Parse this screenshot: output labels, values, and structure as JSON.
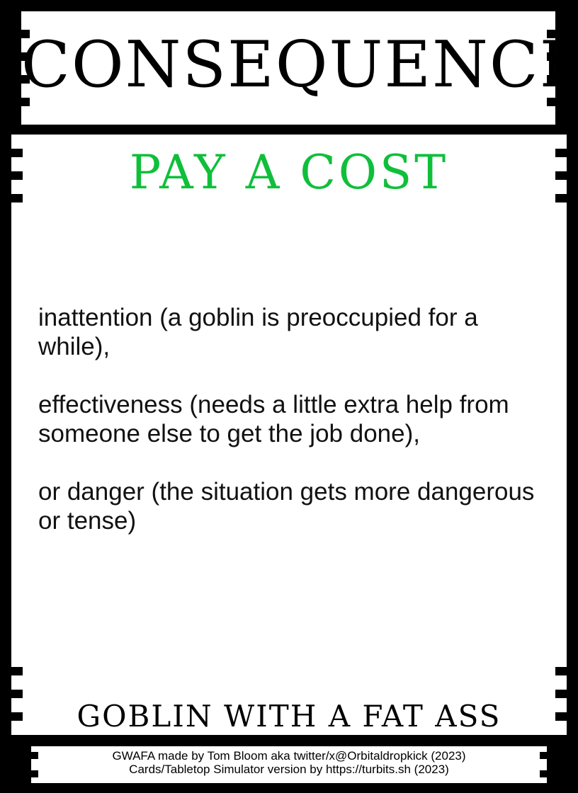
{
  "card": {
    "category": "CONSEQUENCE",
    "title": "PAY A COST",
    "paragraphs": [
      "inattention (a goblin is preoccupied for a while),",
      "effectiveness (needs a little extra help from someone else to get the job done),",
      "or danger (the situation gets more dangerous or tense)"
    ],
    "game_name": "GOBLIN WITH A FAT ASS",
    "credits": [
      "GWAFA made by Tom Bloom aka twitter/x@Orbitaldropkick (2023)",
      "Cards/Tabletop Simulator version by https://turbits.sh (2023)"
    ]
  },
  "colors": {
    "frame": "#000000",
    "panel": "#ffffff",
    "title_accent": "#0fbf3a"
  }
}
